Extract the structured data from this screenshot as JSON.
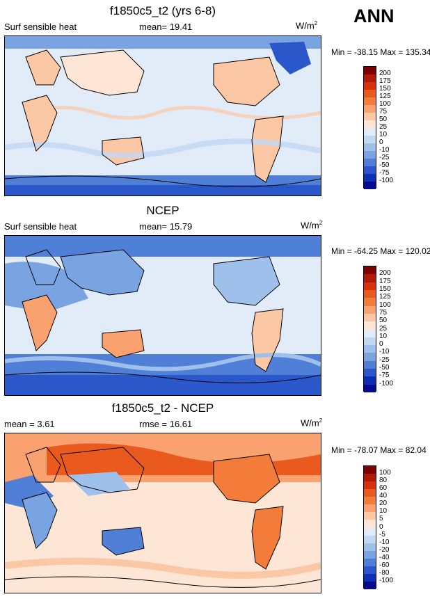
{
  "season": "ANN",
  "panels": [
    {
      "title": "f1850c5_t2 (yrs 6-8)",
      "left_label": "Surf sensible heat",
      "stat_label": "mean=",
      "stat_value": "19.41",
      "units_main": "W/m",
      "units_sup": "2",
      "minmax": "Min = -38.15 Max = 135.34",
      "colorbar": {
        "levels": [
          "200",
          "175",
          "150",
          "125",
          "100",
          "75",
          "50",
          "25",
          "10",
          "0",
          "-10",
          "-25",
          "-50",
          "-75",
          "-100"
        ],
        "colors": [
          "#7f0000",
          "#b01b05",
          "#d7300a",
          "#ea5a1e",
          "#f37c3a",
          "#f9a270",
          "#fcc7a4",
          "#fde6d6",
          "#e2ecf8",
          "#c2d7f2",
          "#a0c0ec",
          "#7aa3e2",
          "#4f7fd6",
          "#2a58cb",
          "#0d2fb8",
          "#040c8c"
        ]
      }
    },
    {
      "title": "NCEP",
      "left_label": "Surf sensible heat",
      "stat_label": "mean=",
      "stat_value": "15.79",
      "units_main": "W/m",
      "units_sup": "2",
      "minmax": "Min = -64.25 Max = 120.02",
      "colorbar": {
        "levels": [
          "200",
          "175",
          "150",
          "125",
          "100",
          "75",
          "50",
          "25",
          "10",
          "0",
          "-10",
          "-25",
          "-50",
          "-75",
          "-100"
        ],
        "colors": [
          "#7f0000",
          "#b01b05",
          "#d7300a",
          "#ea5a1e",
          "#f37c3a",
          "#f9a270",
          "#fcc7a4",
          "#fde6d6",
          "#e2ecf8",
          "#c2d7f2",
          "#a0c0ec",
          "#7aa3e2",
          "#4f7fd6",
          "#2a58cb",
          "#0d2fb8",
          "#040c8c"
        ]
      }
    },
    {
      "title": "f1850c5_t2 - NCEP",
      "left_label": "mean =",
      "left_value": "3.61",
      "stat_label": "rmse =",
      "stat_value": "16.61",
      "units_main": "W/m",
      "units_sup": "2",
      "minmax": "Min = -78.07 Max =  82.04",
      "colorbar": {
        "levels": [
          "100",
          "80",
          "60",
          "40",
          "20",
          "10",
          "5",
          "0",
          "-5",
          "-10",
          "-20",
          "-40",
          "-60",
          "-80",
          "-100"
        ],
        "colors": [
          "#7f0000",
          "#b01b05",
          "#d7300a",
          "#ea5a1e",
          "#f37c3a",
          "#f9a270",
          "#fcc7a4",
          "#fde6d6",
          "#e2ecf8",
          "#c2d7f2",
          "#a0c0ec",
          "#7aa3e2",
          "#4f7fd6",
          "#2a58cb",
          "#0d2fb8",
          "#040c8c"
        ]
      }
    }
  ],
  "map_colors": {
    "ocean": "#e2ecf8",
    "land_warm": "#fcc7a4",
    "land_hot": "#f9a270",
    "ice_cold": "#4f7fd6",
    "deep_cold": "#2a58cb",
    "diff_warm": "#f9a270",
    "diff_hot": "#ea5a1e",
    "diff_cold": "#7aa3e2"
  }
}
